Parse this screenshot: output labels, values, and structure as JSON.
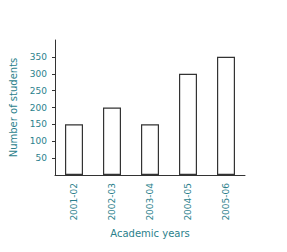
{
  "chart_data": {
    "type": "bar",
    "x_label": "Academic years",
    "y_label": "Number of students",
    "categories": [
      "2001-02",
      "2002-03",
      "2003-04",
      "2004-05",
      "2005-06"
    ],
    "values": [
      150,
      200,
      150,
      300,
      350
    ],
    "color": "#ffffff",
    "ylim": [
      0,
      400
    ],
    "yticks": [
      50,
      100,
      150,
      200,
      250,
      300,
      350
    ],
    "grid": false
  }
}
